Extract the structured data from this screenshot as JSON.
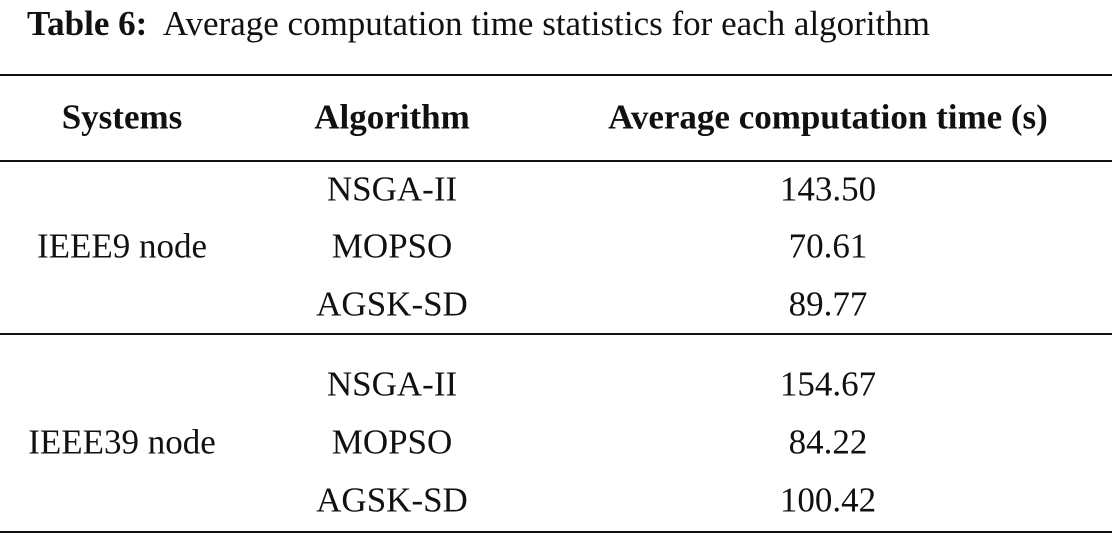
{
  "caption": {
    "label": "Table 6:",
    "text": "Average computation time statistics for each algorithm"
  },
  "table": {
    "header": [
      "Systems",
      "Algorithm",
      "Average computation time (s)"
    ],
    "groups": [
      {
        "system": "IEEE9 node",
        "rows": [
          [
            "NSGA-II",
            "143.50"
          ],
          [
            "MOPSO",
            "70.61"
          ],
          [
            "AGSK-SD",
            "89.77"
          ]
        ]
      },
      {
        "system": "IEEE39 node",
        "rows": [
          [
            "NSGA-II",
            "154.67"
          ],
          [
            "MOPSO",
            "84.22"
          ],
          [
            "AGSK-SD",
            "100.42"
          ]
        ]
      }
    ]
  }
}
